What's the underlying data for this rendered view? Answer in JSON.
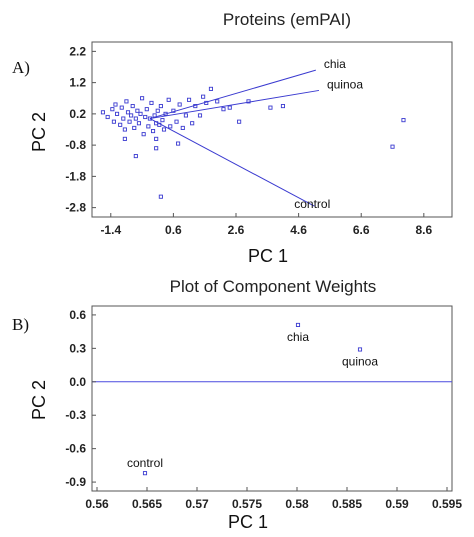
{
  "chart_data": [
    {
      "type": "scatter",
      "panel": "A)",
      "title": "Proteins (emPAI)",
      "xlabel": "PC 1",
      "ylabel": "PC 2",
      "xlim": [
        -2.0,
        9.5
      ],
      "ylim": [
        -3.1,
        2.5
      ],
      "xticks": [
        "-1.4",
        "0.6",
        "2.6",
        "4.6",
        "6.6",
        "8.6"
      ],
      "xtick_values": [
        -1.4,
        0.6,
        2.6,
        4.6,
        6.6,
        8.6
      ],
      "yticks": [
        "2.2",
        "1.2",
        "0.2",
        "-0.8",
        "-1.8",
        "-2.8"
      ],
      "ytick_values": [
        2.2,
        1.2,
        0.2,
        -0.8,
        -1.8,
        -2.8
      ],
      "grid": false,
      "marker_color": "#3a3ad0",
      "points": [
        [
          -1.65,
          0.25
        ],
        [
          -1.5,
          0.1
        ],
        [
          -1.35,
          0.35
        ],
        [
          -1.3,
          -0.05
        ],
        [
          -1.25,
          0.5
        ],
        [
          -1.2,
          0.2
        ],
        [
          -1.1,
          -0.15
        ],
        [
          -1.05,
          0.4
        ],
        [
          -1.0,
          0.05
        ],
        [
          -0.95,
          -0.3
        ],
        [
          -0.9,
          0.6
        ],
        [
          -0.85,
          0.25
        ],
        [
          -0.8,
          -0.05
        ],
        [
          -0.75,
          0.15
        ],
        [
          -0.7,
          0.45
        ],
        [
          -0.65,
          -0.25
        ],
        [
          -0.6,
          0.05
        ],
        [
          -0.55,
          0.3
        ],
        [
          -0.5,
          -0.1
        ],
        [
          -0.45,
          0.2
        ],
        [
          -0.4,
          0.7
        ],
        [
          -0.35,
          -0.45
        ],
        [
          -0.3,
          0.1
        ],
        [
          -0.25,
          0.35
        ],
        [
          -0.2,
          -0.2
        ],
        [
          -0.15,
          0.05
        ],
        [
          -0.1,
          0.55
        ],
        [
          -0.05,
          -0.35
        ],
        [
          0.0,
          0.15
        ],
        [
          0.05,
          -0.1
        ],
        [
          0.1,
          0.3
        ],
        [
          0.15,
          -0.15
        ],
        [
          0.2,
          0.45
        ],
        [
          0.25,
          0.0
        ],
        [
          0.3,
          -0.3
        ],
        [
          0.35,
          0.2
        ],
        [
          0.45,
          0.65
        ],
        [
          0.5,
          -0.2
        ],
        [
          0.6,
          0.3
        ],
        [
          0.7,
          -0.05
        ],
        [
          0.8,
          0.5
        ],
        [
          0.9,
          -0.25
        ],
        [
          1.0,
          0.15
        ],
        [
          1.1,
          0.65
        ],
        [
          1.2,
          -0.1
        ],
        [
          1.3,
          0.45
        ],
        [
          1.45,
          0.15
        ],
        [
          1.55,
          0.75
        ],
        [
          1.65,
          0.55
        ],
        [
          1.8,
          1.0
        ],
        [
          2.0,
          0.6
        ],
        [
          2.2,
          0.35
        ],
        [
          2.4,
          0.4
        ],
        [
          2.7,
          -0.05
        ],
        [
          3.0,
          0.6
        ],
        [
          3.7,
          0.4
        ],
        [
          4.1,
          0.45
        ],
        [
          -0.6,
          -1.15
        ],
        [
          0.05,
          -0.9
        ],
        [
          0.75,
          -0.75
        ],
        [
          -0.95,
          -0.6
        ],
        [
          0.2,
          -2.45
        ],
        [
          7.6,
          -0.85
        ],
        [
          7.95,
          0.0
        ],
        [
          0.05,
          -0.6
        ]
      ],
      "vectors": [
        {
          "label": "chia",
          "x": 5.15,
          "y": 1.6
        },
        {
          "label": "quinoa",
          "x": 5.25,
          "y": 0.95
        },
        {
          "label": "control",
          "x": 5.1,
          "y": -2.75
        }
      ],
      "vector_origin": [
        -0.15,
        0.05
      ]
    },
    {
      "type": "scatter",
      "panel": "B)",
      "title": "Plot of Component Weights",
      "xlabel": "PC 1",
      "ylabel": "PC 2",
      "xlim": [
        0.5595,
        0.5955
      ],
      "ylim": [
        -0.98,
        0.68
      ],
      "xticks": [
        "0.56",
        "0.565",
        "0.57",
        "0.575",
        "0.58",
        "0.585",
        "0.59",
        "0.595"
      ],
      "xtick_values": [
        0.56,
        0.565,
        0.57,
        0.575,
        0.58,
        0.585,
        0.59,
        0.595
      ],
      "yticks": [
        "0.6",
        "0.3",
        "0.0",
        "-0.3",
        "-0.6",
        "-0.9"
      ],
      "ytick_values": [
        0.6,
        0.3,
        0.0,
        -0.3,
        -0.6,
        -0.9
      ],
      "reference_line_y": 0.0,
      "grid": false,
      "marker_color": "#3a3ad0",
      "points": [
        {
          "label": "chia",
          "x": 0.5801,
          "y": 0.51
        },
        {
          "label": "quinoa",
          "x": 0.5863,
          "y": 0.29
        },
        {
          "label": "control",
          "x": 0.5648,
          "y": -0.82
        }
      ]
    }
  ]
}
